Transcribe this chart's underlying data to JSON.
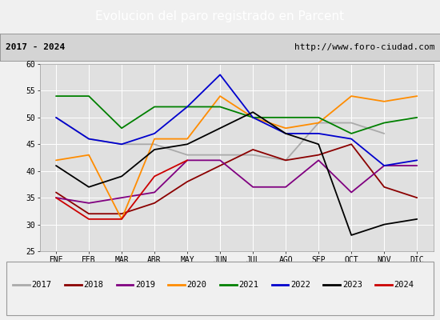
{
  "title": "Evolucion del paro registrado en Parcent",
  "subtitle_left": "2017 - 2024",
  "subtitle_right": "http://www.foro-ciudad.com",
  "x_labels": [
    "ENE",
    "FEB",
    "MAR",
    "ABR",
    "MAY",
    "JUN",
    "JUL",
    "AGO",
    "SEP",
    "OCT",
    "NOV",
    "DIC"
  ],
  "ylim": [
    25,
    60
  ],
  "yticks": [
    25,
    30,
    35,
    40,
    45,
    50,
    55,
    60
  ],
  "series": {
    "2017": {
      "color": "#aaaaaa",
      "data": [
        50,
        46,
        45,
        45,
        43,
        43,
        43,
        42,
        49,
        49,
        47,
        null
      ]
    },
    "2018": {
      "color": "#8b0000",
      "data": [
        36,
        32,
        32,
        34,
        38,
        41,
        44,
        42,
        43,
        45,
        37,
        35
      ]
    },
    "2019": {
      "color": "#800080",
      "data": [
        35,
        34,
        35,
        36,
        42,
        42,
        37,
        37,
        42,
        36,
        41,
        41
      ]
    },
    "2020": {
      "color": "#ff8c00",
      "data": [
        42,
        43,
        31,
        46,
        46,
        54,
        50,
        48,
        49,
        54,
        53,
        54
      ]
    },
    "2021": {
      "color": "#008000",
      "data": [
        54,
        54,
        48,
        52,
        52,
        52,
        50,
        50,
        50,
        47,
        49,
        50
      ]
    },
    "2022": {
      "color": "#0000cd",
      "data": [
        50,
        46,
        45,
        47,
        52,
        58,
        50,
        47,
        47,
        46,
        41,
        42
      ]
    },
    "2023": {
      "color": "#000000",
      "data": [
        41,
        37,
        39,
        44,
        45,
        48,
        51,
        47,
        45,
        28,
        30,
        31
      ]
    },
    "2024": {
      "color": "#cc0000",
      "data": [
        35,
        31,
        31,
        39,
        42,
        null,
        null,
        null,
        null,
        null,
        null,
        null
      ]
    }
  },
  "fig_bg_color": "#f0f0f0",
  "plot_bg_color": "#e0e0e0",
  "title_bg_color": "#4f81bd",
  "title_color": "#ffffff",
  "header_bg_color": "#d4d4d4",
  "title_fontsize": 11,
  "header_fontsize": 8,
  "axis_fontsize": 7,
  "legend_fontsize": 7.5
}
